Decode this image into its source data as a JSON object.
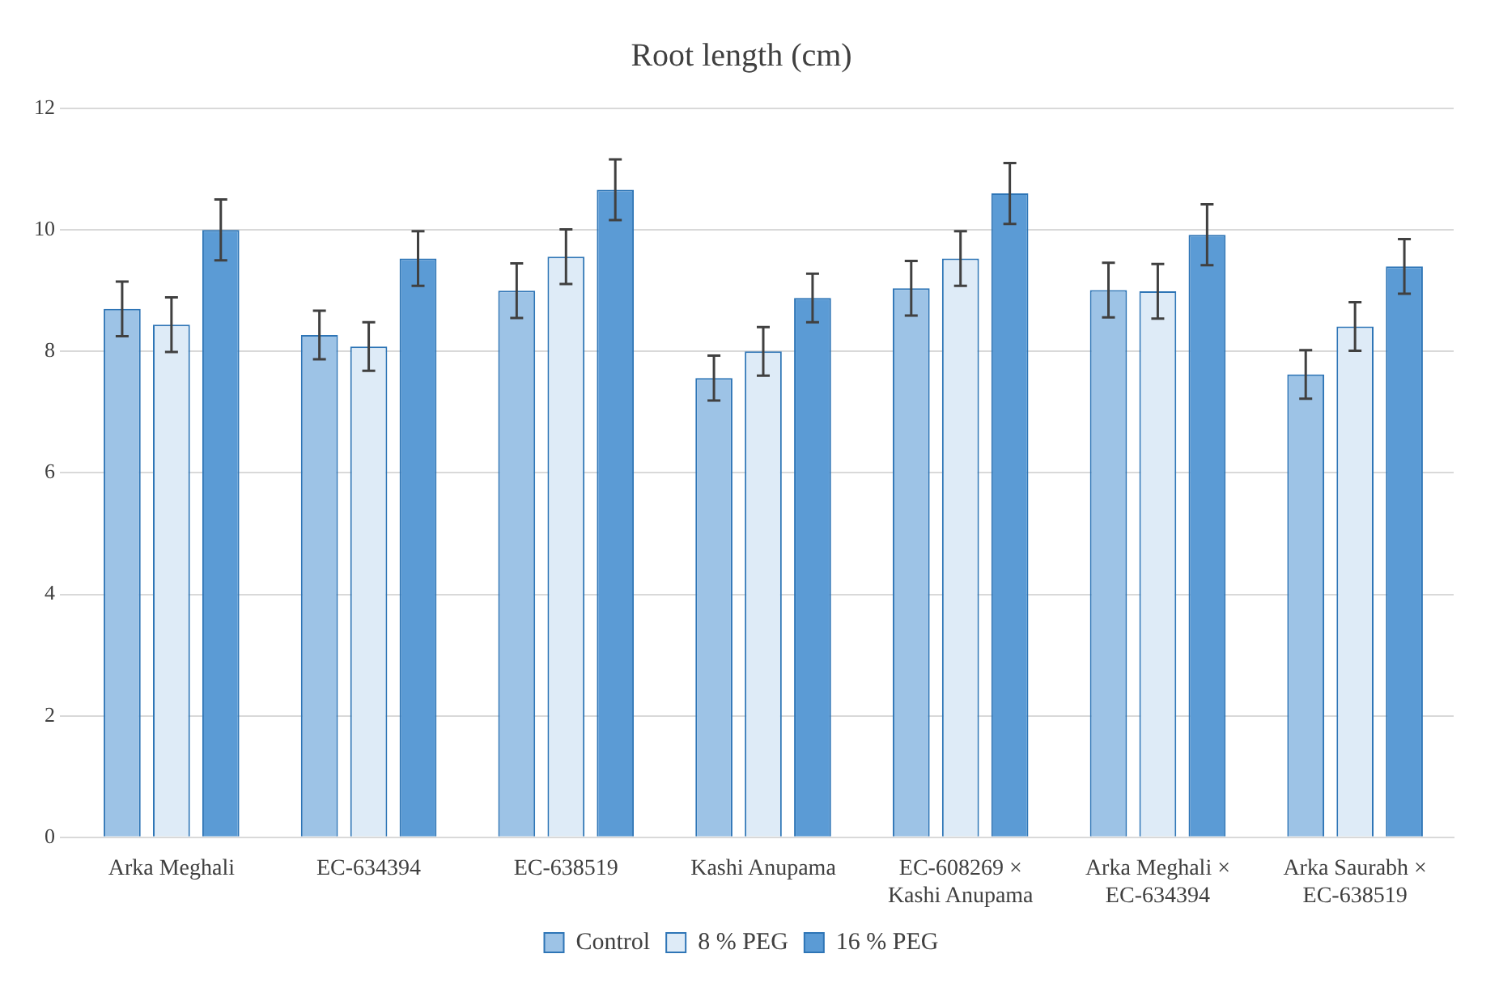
{
  "chart_data": {
    "type": "bar",
    "title": "Root length (cm)",
    "categories": [
      "Arka Meghali",
      "EC-634394",
      "EC-638519",
      "Kashi Anupama",
      "EC-608269 × Kashi Anupama",
      "Arka Meghali × EC-634394",
      "Arka Saurabh × EC-638519"
    ],
    "series": [
      {
        "name": "Control",
        "color": "#9dc3e6",
        "values": [
          8.7,
          8.27,
          9.0,
          7.56,
          9.04,
          9.01,
          7.62
        ],
        "errors": [
          0.45,
          0.4,
          0.45,
          0.37,
          0.45,
          0.45,
          0.4
        ]
      },
      {
        "name": "8 % PEG",
        "color": "#deebf7",
        "values": [
          8.44,
          8.08,
          9.56,
          8.0,
          9.53,
          8.99,
          8.41
        ],
        "errors": [
          0.45,
          0.4,
          0.45,
          0.4,
          0.45,
          0.45,
          0.4
        ]
      },
      {
        "name": "16 % PEG",
        "color": "#5b9bd5",
        "values": [
          10.0,
          9.53,
          10.66,
          8.88,
          10.6,
          9.92,
          9.4
        ],
        "errors": [
          0.5,
          0.45,
          0.5,
          0.4,
          0.5,
          0.5,
          0.45
        ]
      }
    ],
    "ylim": [
      0,
      12
    ],
    "yticks": [
      0,
      2,
      4,
      6,
      8,
      10,
      12
    ],
    "grid": "y",
    "legend": "bottom"
  }
}
